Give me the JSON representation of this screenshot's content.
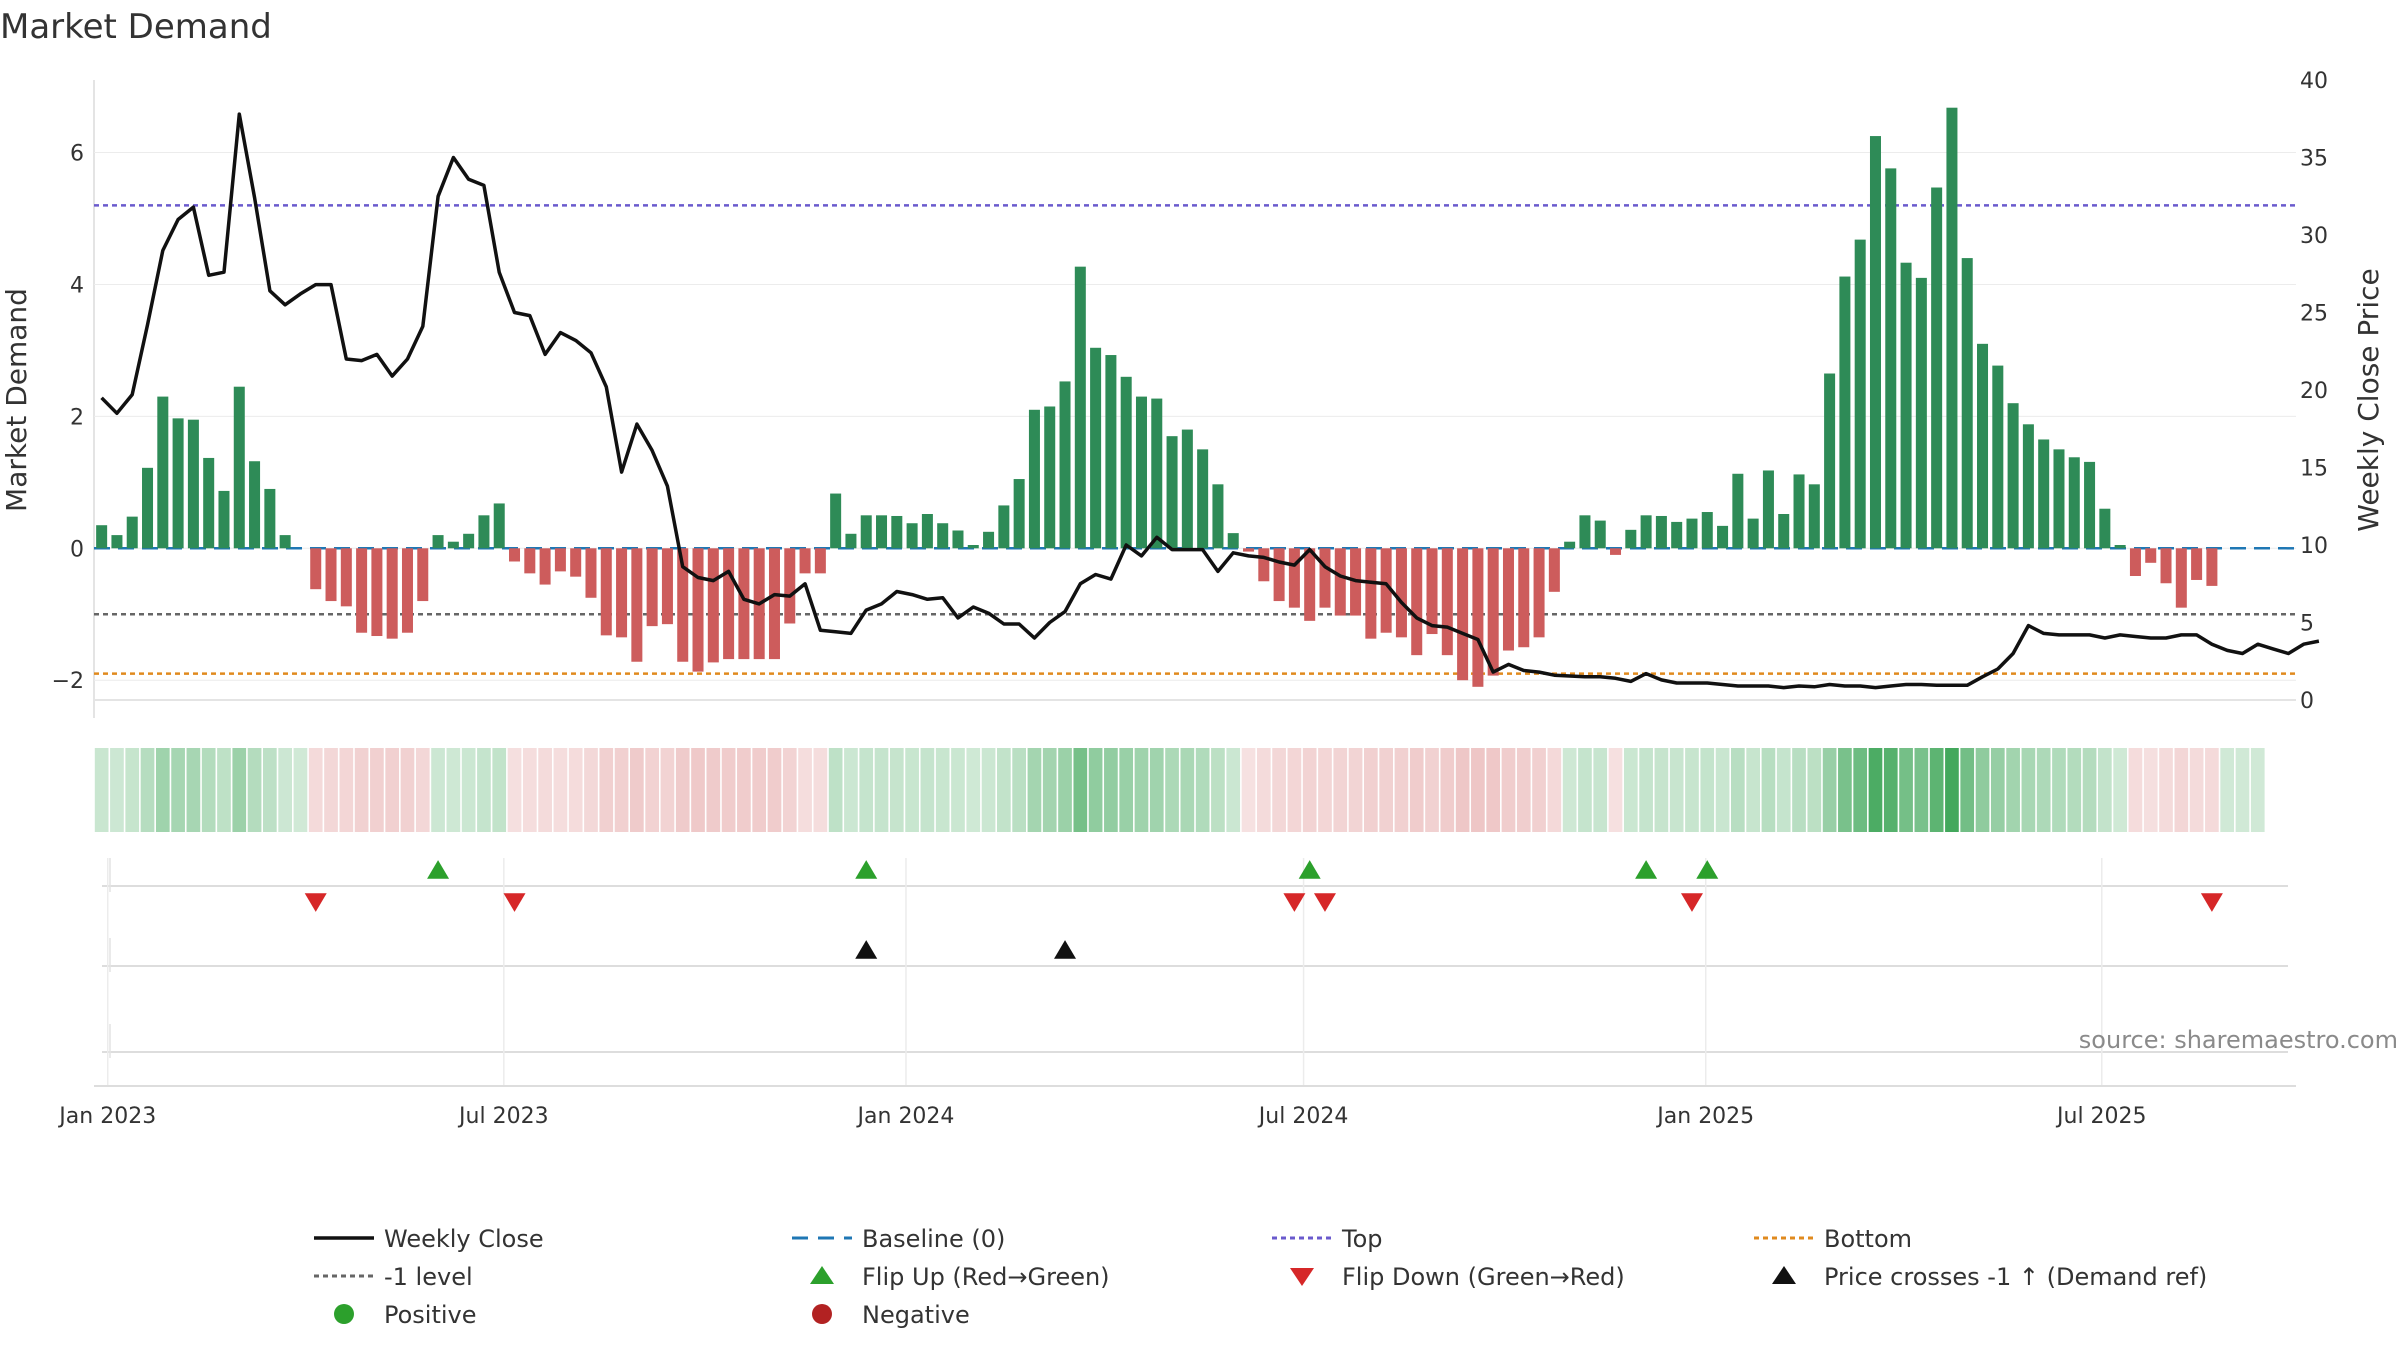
{
  "chart_data": {
    "type": "bar",
    "title": "Market Demand",
    "ylabel_left": "Market Demand",
    "ylabel_right": "Weekly Close Price",
    "source": "source: sharemaestro.com",
    "ylim_left": [
      -2.3,
      7.1
    ],
    "ylim_right": [
      0,
      40
    ],
    "yticks_left": [
      {
        "v": -2,
        "label": "−2"
      },
      {
        "v": 0,
        "label": "0"
      },
      {
        "v": 2,
        "label": "2"
      },
      {
        "v": 4,
        "label": "4"
      },
      {
        "v": 6,
        "label": "6"
      }
    ],
    "yticks_right": [
      0,
      5,
      10,
      15,
      20,
      25,
      30,
      35,
      40
    ],
    "x_start": "2022-12-26",
    "week_count": 144,
    "date_ticks": [
      {
        "label": "Jan 2023",
        "week": 0.9
      },
      {
        "label": "Jul 2023",
        "week": 26.8
      },
      {
        "label": "Jan 2024",
        "week": 53.1
      },
      {
        "label": "Jul 2024",
        "week": 79.1
      },
      {
        "label": "Jan 2025",
        "week": 105.4
      },
      {
        "label": "Jul 2025",
        "week": 131.3
      }
    ],
    "levels": {
      "baseline": 0,
      "top": 5.2,
      "minus_one": -1,
      "bottom": -1.9
    },
    "demand": [
      0.35,
      0.2,
      0.48,
      1.22,
      2.3,
      1.97,
      1.95,
      1.37,
      0.87,
      2.45,
      1.32,
      0.9,
      0.2,
      0,
      -0.62,
      -0.8,
      -0.88,
      -1.28,
      -1.33,
      -1.37,
      -1.28,
      -0.8,
      0.2,
      0.1,
      0.22,
      0.5,
      0.68,
      -0.2,
      -0.38,
      -0.55,
      -0.35,
      -0.43,
      -0.75,
      -1.32,
      -1.35,
      -1.72,
      -1.18,
      -1.15,
      -1.72,
      -1.87,
      -1.73,
      -1.68,
      -1.68,
      -1.68,
      -1.68,
      -1.14,
      -0.38,
      -0.38,
      0.83,
      0.22,
      0.5,
      0.5,
      0.49,
      0.38,
      0.52,
      0.38,
      0.27,
      0.05,
      0.25,
      0.65,
      1.05,
      2.1,
      2.15,
      2.53,
      4.27,
      3.04,
      2.93,
      2.6,
      2.3,
      2.27,
      1.7,
      1.8,
      1.5,
      0.97,
      0.23,
      -0.05,
      -0.5,
      -0.8,
      -0.9,
      -1.1,
      -0.9,
      -1.02,
      -1.02,
      -1.37,
      -1.28,
      -1.35,
      -1.62,
      -1.3,
      -1.62,
      -2,
      -2.1,
      -1.93,
      -1.55,
      -1.5,
      -1.35,
      -0.66,
      0.1,
      0.5,
      0.42,
      -0.1,
      0.28,
      0.5,
      0.49,
      0.4,
      0.45,
      0.55,
      0.34,
      1.13,
      0.45,
      1.18,
      0.52,
      1.12,
      0.97,
      2.65,
      4.12,
      4.68,
      6.25,
      5.76,
      4.33,
      4.1,
      5.47,
      6.68,
      4.4,
      3.1,
      2.77,
      2.2,
      1.88,
      1.65,
      1.5,
      1.38,
      1.31,
      0.6,
      0.05,
      -0.42,
      -0.22,
      -0.53,
      -0.9,
      -0.48,
      -0.57,
      0,
      0,
      0
    ],
    "price": [
      19.5,
      18.5,
      19.7,
      24.2,
      29,
      31,
      31.8,
      27.4,
      27.6,
      37.8,
      32.4,
      26.4,
      25.5,
      26.2,
      26.8,
      26.8,
      22,
      21.9,
      22.3,
      20.9,
      22,
      24.1,
      32.5,
      35,
      33.6,
      33.2,
      27.6,
      25,
      24.8,
      22.3,
      23.7,
      23.2,
      22.4,
      20.2,
      14.7,
      17.8,
      16.1,
      13.8,
      8.6,
      7.9,
      7.7,
      8.3,
      6.5,
      6.2,
      6.8,
      6.7,
      7.5,
      4.5,
      4.4,
      4.3,
      5.8,
      6.2,
      7,
      6.8,
      6.5,
      6.6,
      5.3,
      6,
      5.6,
      4.9,
      4.9,
      4,
      5,
      5.7,
      7.5,
      8.1,
      7.8,
      10,
      9.3,
      10.5,
      9.7,
      9.7,
      9.7,
      8.3,
      9.5,
      9.3,
      9.2,
      8.9,
      8.7,
      9.7,
      8.6,
      8,
      7.7,
      7.6,
      7.5,
      6.3,
      5.3,
      4.8,
      4.7,
      4.3,
      3.9,
      1.8,
      2.3,
      1.9,
      1.8,
      1.6,
      1.55,
      1.5,
      1.5,
      1.4,
      1.2,
      1.7,
      1.3,
      1.1,
      1.1,
      1.1,
      1.0,
      0.9,
      0.9,
      0.9,
      0.8,
      0.9,
      0.85,
      1.0,
      0.9,
      0.9,
      0.8,
      0.9,
      1.0,
      1.0,
      0.95,
      0.95,
      0.95,
      1.5,
      2.0,
      3.0,
      4.8,
      4.3,
      4.2,
      4.2,
      4.2,
      4.0,
      4.2,
      4.1,
      4.0,
      4.0,
      4.2,
      4.2,
      3.6,
      3.2,
      3.0,
      3.6,
      3.3,
      3.0,
      3.6,
      3.8
    ],
    "flip_up_weeks": [
      22,
      50,
      79,
      101,
      105
    ],
    "flip_down_weeks": [
      14,
      27,
      78,
      80,
      104,
      138
    ],
    "price_cross_weeks": [
      50,
      63
    ],
    "colors": {
      "positive": "#2e8b57",
      "negative": "#cd5c5c",
      "price": "#111111",
      "baseline": "#1f77b4",
      "top": "#6a5acd",
      "minus_one": "#666666",
      "bottom": "#e08a1e",
      "flip_up": "#2ca02c",
      "flip_down": "#d62728",
      "cross": "#111111",
      "positive_dot": "#2ca02c",
      "negative_dot": "#b22222"
    },
    "legend": [
      {
        "label": "Weekly Close",
        "kind": "line",
        "color": "#111111"
      },
      {
        "label": "Baseline (0)",
        "kind": "dash",
        "color": "#1f77b4"
      },
      {
        "label": "Top",
        "kind": "dot",
        "color": "#6a5acd"
      },
      {
        "label": "Bottom",
        "kind": "dot",
        "color": "#e08a1e"
      },
      {
        "label": "-1 level",
        "kind": "dot",
        "color": "#666666"
      },
      {
        "label": "Flip Up (Red→Green)",
        "kind": "tri-up",
        "color": "#2ca02c"
      },
      {
        "label": "Flip Down (Green→Red)",
        "kind": "tri-down",
        "color": "#d62728"
      },
      {
        "label": "Price crosses -1 ↑ (Demand ref)",
        "kind": "tri-up",
        "color": "#111111"
      },
      {
        "label": "Positive",
        "kind": "circle",
        "color": "#2ca02c"
      },
      {
        "label": "Negative",
        "kind": "circle",
        "color": "#b22222"
      }
    ]
  }
}
